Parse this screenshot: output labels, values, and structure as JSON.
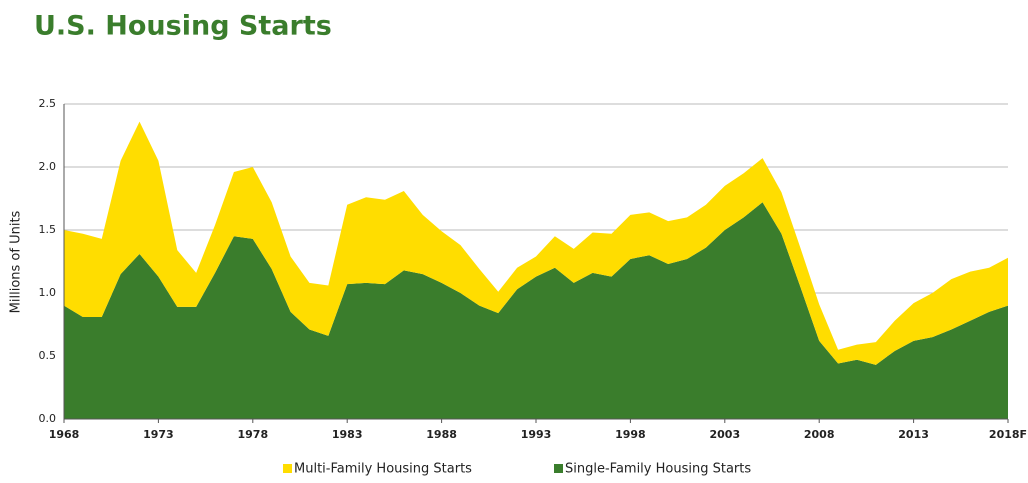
{
  "chart_data": {
    "type": "stacked-area",
    "title": "U.S. Housing Starts",
    "y_label": "Millions of Units",
    "categories": [
      "1968",
      null,
      null,
      null,
      null,
      "1973",
      null,
      null,
      null,
      null,
      "1978",
      null,
      null,
      null,
      null,
      "1983",
      null,
      null,
      null,
      null,
      "1988",
      null,
      null,
      null,
      null,
      "1993",
      null,
      null,
      null,
      null,
      "1998",
      null,
      null,
      null,
      null,
      "2003",
      null,
      null,
      null,
      null,
      "2008",
      null,
      null,
      null,
      null,
      "2013",
      null,
      null,
      null,
      null,
      "2018F"
    ],
    "series": [
      {
        "name": "Multi-Family Housing Starts",
        "color": "#ffdd00",
        "values": [
          0.6,
          0.66,
          0.62,
          0.9,
          1.05,
          0.92,
          0.45,
          0.27,
          0.38,
          0.51,
          0.57,
          0.53,
          0.44,
          0.37,
          0.4,
          0.63,
          0.68,
          0.67,
          0.63,
          0.47,
          0.41,
          0.38,
          0.29,
          0.17,
          0.17,
          0.16,
          0.25,
          0.27,
          0.32,
          0.34,
          0.35,
          0.34,
          0.34,
          0.33,
          0.34,
          0.35,
          0.35,
          0.35,
          0.33,
          0.31,
          0.29,
          0.11,
          0.12,
          0.18,
          0.24,
          0.3,
          0.35,
          0.4,
          0.39,
          0.35,
          0.38
        ]
      },
      {
        "name": "Single-Family Housing Starts",
        "color": "#3a7d2c",
        "values": [
          0.9,
          0.81,
          0.81,
          1.15,
          1.31,
          1.13,
          0.89,
          0.89,
          1.16,
          1.45,
          1.43,
          1.19,
          0.85,
          0.71,
          0.66,
          1.07,
          1.08,
          1.07,
          1.18,
          1.15,
          1.08,
          1.0,
          0.9,
          0.84,
          1.03,
          1.13,
          1.2,
          1.08,
          1.16,
          1.13,
          1.27,
          1.3,
          1.23,
          1.27,
          1.36,
          1.5,
          1.6,
          1.72,
          1.47,
          1.05,
          0.62,
          0.44,
          0.47,
          0.43,
          0.54,
          0.62,
          0.65,
          0.71,
          0.78,
          0.85,
          0.9
        ]
      }
    ],
    "ylim": [
      0,
      2.5
    ],
    "yticks": [
      {
        "value": 0,
        "label": "0.0"
      },
      0.5,
      {
        "value": 1,
        "label": "1.0"
      },
      1.5,
      {
        "value": 2,
        "label": "2.0"
      },
      2.5
    ],
    "grid": true
  }
}
